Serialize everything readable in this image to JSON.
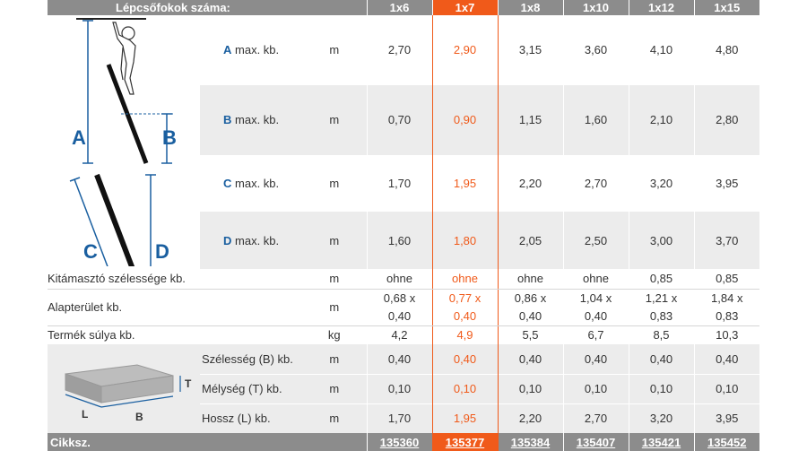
{
  "header": {
    "title": "Lépcsőfokok száma:",
    "cols": [
      "1x6",
      "1x7",
      "1x8",
      "1x10",
      "1x12",
      "1x15"
    ],
    "highlight_index": 1
  },
  "rows": [
    {
      "label_letter": "A",
      "label_text": "max. kb.",
      "unit": "m",
      "values": [
        "2,70",
        "2,90",
        "3,15",
        "3,60",
        "4,10",
        "4,80"
      ]
    },
    {
      "label_letter": "B",
      "label_text": "max. kb.",
      "unit": "m",
      "values": [
        "0,70",
        "0,90",
        "1,15",
        "1,60",
        "2,10",
        "2,80"
      ]
    },
    {
      "label_letter": "C",
      "label_text": "max. kb.",
      "unit": "m",
      "values": [
        "1,70",
        "1,95",
        "2,20",
        "2,70",
        "3,20",
        "3,95"
      ]
    },
    {
      "label_letter": "D",
      "label_text": "max. kb.",
      "unit": "m",
      "values": [
        "1,60",
        "1,80",
        "2,05",
        "2,50",
        "3,00",
        "3,70"
      ]
    }
  ],
  "support": {
    "label": "Kitámasztó szélessége kb.",
    "unit": "m",
    "values": [
      "ohne",
      "ohne",
      "ohne",
      "ohne",
      "0,85",
      "0,85"
    ]
  },
  "area": {
    "label": "Alapterület kb.",
    "unit": "m",
    "top": [
      "0,68 x",
      "0,77 x",
      "0,86 x",
      "1,04 x",
      "1,21 x",
      "1,84 x"
    ],
    "bottom": [
      "0,40",
      "0,40",
      "0,40",
      "0,40",
      "0,83",
      "0,83"
    ]
  },
  "weight": {
    "label": "Termék súlya kb.",
    "unit": "kg",
    "values": [
      "4,2",
      "4,9",
      "5,5",
      "6,7",
      "8,5",
      "10,3"
    ]
  },
  "package": [
    {
      "label": "Szélesség (B) kb.",
      "unit": "m",
      "values": [
        "0,40",
        "0,40",
        "0,40",
        "0,40",
        "0,40",
        "0,40"
      ]
    },
    {
      "label": "Mélység (T) kb.",
      "unit": "m",
      "values": [
        "0,10",
        "0,10",
        "0,10",
        "0,10",
        "0,10",
        "0,10"
      ]
    },
    {
      "label": "Hossz (L) kb.",
      "unit": "m",
      "values": [
        "1,70",
        "1,95",
        "2,20",
        "2,70",
        "3,20",
        "3,95"
      ]
    }
  ],
  "footer": {
    "label": "Cikksz.",
    "values": [
      "135360",
      "135377",
      "135384",
      "135407",
      "135421",
      "135452"
    ]
  },
  "diagram_letters": {
    "a": "A",
    "b": "B",
    "c": "C",
    "d": "D",
    "t": "T",
    "l": "L",
    "bb": "B"
  },
  "colors": {
    "accent": "#f05a1a",
    "header_bg": "#8c8c8c",
    "label_blue": "#1a5fa0",
    "shade": "#ececec"
  }
}
